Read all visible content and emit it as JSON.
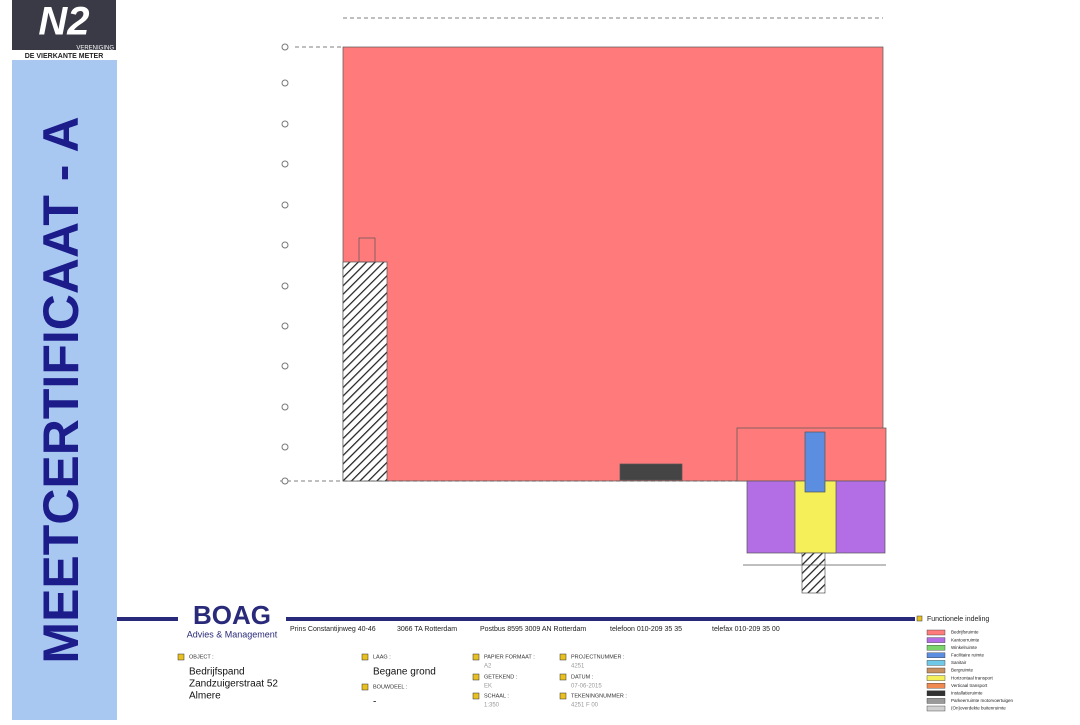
{
  "logo": {
    "mark": "N2",
    "line1": "VERENIGING",
    "line2": "DE VIERKANTE METER"
  },
  "side_title": "MEETCERTIFICAAT - A",
  "company": {
    "name": "BOAG",
    "tagline": "Advies & Management",
    "address": [
      "Prins Constantijnweg 40-46",
      "3066 TA Rotterdam",
      "Postbus 8595 3009 AN Rotterdam",
      "telefoon 010-209 35 35",
      "telefax 010-209 35 00"
    ]
  },
  "fields": [
    {
      "label": "OBJECT :",
      "lines": [
        "Bedrijfspand",
        "Zandzuigerstraat 52",
        "Almere"
      ]
    },
    {
      "label": "LAAG :",
      "lines": [
        "Begane grond"
      ]
    },
    {
      "label": "BOUWDEEL :",
      "lines": [
        "-"
      ]
    },
    {
      "label": "PAPIER FORMAAT :",
      "lines": [
        "A2"
      ]
    },
    {
      "label": "GETEKEND :",
      "lines": [
        "EK"
      ]
    },
    {
      "label": "SCHAAL :",
      "lines": [
        "1:350"
      ]
    },
    {
      "label": "PROJECTNUMMER :",
      "lines": [
        "4251"
      ]
    },
    {
      "label": "DATUM :",
      "lines": [
        "07-06-2015"
      ]
    },
    {
      "label": "TEKENINGNUMMER :",
      "lines": [
        "4251 F 00"
      ]
    }
  ],
  "legend": {
    "title": "Functionele indeling",
    "items": [
      {
        "label": "Bedrijfsruimte",
        "color": "#ff7b7b"
      },
      {
        "label": "Kantoorruimte",
        "color": "#b36ee6"
      },
      {
        "label": "Winkelruimte",
        "color": "#7bd36b"
      },
      {
        "label": "Facilitaire ruimte",
        "color": "#5b8de0"
      },
      {
        "label": "Sanitair",
        "color": "#6ec8e8"
      },
      {
        "label": "Bergruimte",
        "color": "#c89060"
      },
      {
        "label": "Horizontaal transport",
        "color": "#f5ef5a"
      },
      {
        "label": "Verticaal transport",
        "color": "#f08a50"
      },
      {
        "label": "Installatieruimte",
        "color": "#333333"
      },
      {
        "label": "Parkeerruimte motorvoertuigen",
        "color": "#9a9a9a"
      },
      {
        "label": "(On)overdekte buitenruimte",
        "color": "#d0d0d0"
      }
    ]
  }
}
